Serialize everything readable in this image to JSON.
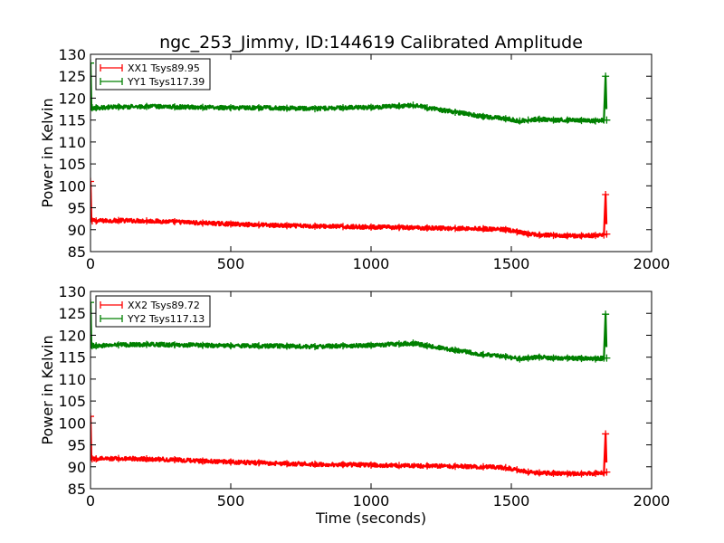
{
  "figure_title": "ngc_253_Jimmy, ID:144619 Calibrated Amplitude",
  "colors": {
    "xx": "#ff0000",
    "yy": "#008000",
    "axes": "#000000",
    "background": "#ffffff"
  },
  "chart_data": [
    {
      "type": "line",
      "title": "ngc_253_Jimmy, ID:144619 Calibrated Amplitude",
      "xlabel": "",
      "ylabel": "Power in Kelvin",
      "xlim": [
        0,
        2000
      ],
      "ylim": [
        85,
        130
      ],
      "xticks": [
        "0",
        "500",
        "1000",
        "1500",
        "2000"
      ],
      "yticks": [
        "85",
        "90",
        "95",
        "100",
        "105",
        "110",
        "115",
        "120",
        "125",
        "130"
      ],
      "legend_position": "top-left",
      "grid": false,
      "series": [
        {
          "name": "XX1 Tsys89.95",
          "color": "#ff0000",
          "x": [
            0,
            3,
            6,
            20,
            100,
            200,
            300,
            400,
            500,
            600,
            700,
            800,
            900,
            1000,
            1100,
            1200,
            1300,
            1400,
            1480,
            1520,
            1560,
            1600,
            1650,
            1700,
            1750,
            1800,
            1830,
            1836,
            1840
          ],
          "y": [
            101,
            92.5,
            92,
            92,
            92.1,
            92,
            91.8,
            91.5,
            91.3,
            91.1,
            90.9,
            90.8,
            90.7,
            90.6,
            90.5,
            90.4,
            90.3,
            90.2,
            90,
            89.5,
            89,
            88.8,
            88.7,
            88.6,
            88.6,
            88.7,
            88.8,
            98,
            89
          ]
        },
        {
          "name": "YY1 Tsys117.39",
          "color": "#008000",
          "x": [
            0,
            3,
            6,
            20,
            100,
            200,
            300,
            400,
            500,
            600,
            700,
            800,
            900,
            1000,
            1100,
            1150,
            1200,
            1300,
            1400,
            1480,
            1530,
            1560,
            1600,
            1650,
            1700,
            1750,
            1800,
            1830,
            1836,
            1840
          ],
          "y": [
            128,
            118,
            117.8,
            117.8,
            118,
            118.1,
            118,
            117.9,
            117.8,
            117.8,
            117.7,
            117.6,
            117.8,
            117.9,
            118.2,
            118.4,
            117.8,
            116.8,
            115.8,
            115.3,
            114.8,
            115,
            115.2,
            115,
            115,
            114.9,
            114.8,
            115,
            125,
            115
          ]
        }
      ]
    },
    {
      "type": "line",
      "title": "",
      "xlabel": "Time (seconds)",
      "ylabel": "Power in Kelvin",
      "xlim": [
        0,
        2000
      ],
      "ylim": [
        85,
        130
      ],
      "xticks": [
        "0",
        "500",
        "1000",
        "1500",
        "2000"
      ],
      "yticks": [
        "85",
        "90",
        "95",
        "100",
        "105",
        "110",
        "115",
        "120",
        "125",
        "130"
      ],
      "legend_position": "top-left",
      "grid": false,
      "series": [
        {
          "name": "XX2 Tsys89.72",
          "color": "#ff0000",
          "x": [
            0,
            3,
            6,
            20,
            100,
            200,
            300,
            400,
            500,
            600,
            700,
            800,
            900,
            1000,
            1100,
            1200,
            1300,
            1400,
            1480,
            1520,
            1560,
            1600,
            1650,
            1700,
            1750,
            1800,
            1830,
            1836,
            1840
          ],
          "y": [
            101.5,
            92.2,
            91.8,
            91.8,
            91.9,
            91.8,
            91.6,
            91.3,
            91.1,
            90.9,
            90.7,
            90.6,
            90.5,
            90.4,
            90.3,
            90.2,
            90.1,
            90,
            89.8,
            89.3,
            88.8,
            88.6,
            88.5,
            88.4,
            88.4,
            88.5,
            88.6,
            97.5,
            88.8
          ]
        },
        {
          "name": "YY2 Tsys117.13",
          "color": "#008000",
          "x": [
            0,
            3,
            6,
            20,
            100,
            200,
            300,
            400,
            500,
            600,
            700,
            800,
            900,
            1000,
            1100,
            1150,
            1200,
            1300,
            1400,
            1480,
            1530,
            1560,
            1600,
            1650,
            1700,
            1750,
            1800,
            1830,
            1836,
            1840
          ],
          "y": [
            127.5,
            117.8,
            117.6,
            117.6,
            117.8,
            117.9,
            117.8,
            117.7,
            117.6,
            117.6,
            117.5,
            117.4,
            117.6,
            117.7,
            118,
            118.2,
            117.6,
            116.6,
            115.6,
            115.1,
            114.6,
            114.8,
            115,
            114.8,
            114.8,
            114.7,
            114.6,
            114.8,
            124.8,
            114.8
          ]
        }
      ]
    }
  ]
}
